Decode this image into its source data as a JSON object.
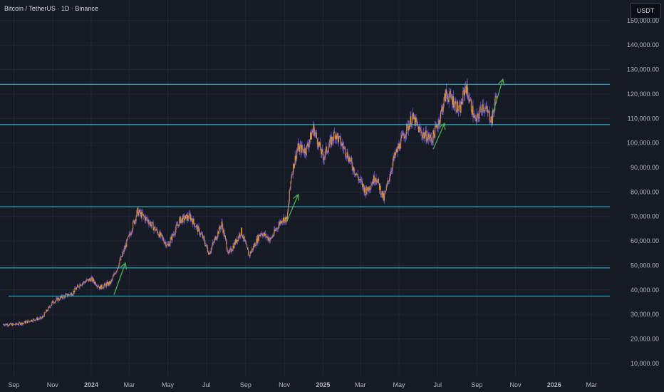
{
  "header": {
    "symbol_title": "Bitcoin / TetherUS · 1D · Binance",
    "currency_label": "USDT"
  },
  "colors": {
    "background": "#161a25",
    "grid": "#232733",
    "axis_text": "#b2b5be",
    "candle": "#e0922c",
    "wick": "#6f5bd0",
    "level_line": "#26c6da",
    "arrow": "#4caf50"
  },
  "chart_data": {
    "type": "line",
    "title": "Bitcoin / TetherUS · 1D · Binance",
    "xlabel": "",
    "ylabel": "",
    "y_axis_position": "right",
    "grid": true,
    "x_tick_labels": [
      "Sep",
      "Nov",
      "2024",
      "Mar",
      "May",
      "Jul",
      "Sep",
      "Nov",
      "2025",
      "Mar",
      "May",
      "Jul",
      "Sep",
      "Nov",
      "2026",
      "Mar"
    ],
    "x_tick_dates": [
      "2023-09-01",
      "2023-11-01",
      "2024-01-01",
      "2024-03-01",
      "2024-05-01",
      "2024-07-01",
      "2024-09-01",
      "2024-11-01",
      "2025-01-01",
      "2025-03-01",
      "2025-05-01",
      "2025-07-01",
      "2025-09-01",
      "2025-11-01",
      "2026-01-01",
      "2026-03-01"
    ],
    "y_tick_labels": [
      "10,000.00",
      "20,000.00",
      "30,000.00",
      "40,000.00",
      "50,000.00",
      "60,000.00",
      "70,000.00",
      "80,000.00",
      "90,000.00",
      "100,000.00",
      "110,000.00",
      "120,000.00",
      "130,000.00",
      "140,000.00",
      "150,000.00"
    ],
    "y_tick_values": [
      10000,
      20000,
      30000,
      40000,
      50000,
      60000,
      70000,
      80000,
      90000,
      100000,
      110000,
      120000,
      130000,
      140000,
      150000
    ],
    "ylim": [
      5000,
      152000
    ],
    "xlim": [
      "2023-08-10",
      "2026-03-30"
    ],
    "series": [
      {
        "values_x": [
          "2023-08-15",
          "2023-09-01",
          "2023-09-15",
          "2023-10-01",
          "2023-10-15",
          "2023-11-01",
          "2023-11-15",
          "2023-12-01",
          "2023-12-15",
          "2024-01-01",
          "2024-01-15",
          "2024-02-01",
          "2024-02-15",
          "2024-03-01",
          "2024-03-14",
          "2024-04-01",
          "2024-04-15",
          "2024-05-01",
          "2024-05-20",
          "2024-06-05",
          "2024-06-25",
          "2024-07-05",
          "2024-07-25",
          "2024-08-05",
          "2024-08-25",
          "2024-09-06",
          "2024-09-25",
          "2024-10-10",
          "2024-10-28",
          "2024-11-05",
          "2024-11-12",
          "2024-11-22",
          "2024-12-05",
          "2024-12-17",
          "2025-01-01",
          "2025-01-20",
          "2025-02-05",
          "2025-02-25",
          "2025-03-10",
          "2025-03-25",
          "2025-04-07",
          "2025-04-22",
          "2025-05-08",
          "2025-05-22",
          "2025-06-05",
          "2025-06-22",
          "2025-07-03",
          "2025-07-14",
          "2025-07-25",
          "2025-08-05",
          "2025-08-14",
          "2025-08-30",
          "2025-09-10",
          "2025-09-25",
          "2025-10-02"
        ],
        "values": [
          26000,
          25800,
          26500,
          27800,
          28500,
          35000,
          37000,
          38500,
          42500,
          44500,
          41000,
          43000,
          51500,
          62000,
          72000,
          68000,
          63500,
          58000,
          68500,
          70000,
          61500,
          55000,
          67000,
          54500,
          64000,
          54000,
          63500,
          60500,
          69000,
          68500,
          87000,
          98000,
          97000,
          106000,
          94000,
          104000,
          97000,
          86000,
          80000,
          86500,
          77000,
          93000,
          103000,
          110500,
          104000,
          101500,
          109000,
          120000,
          117500,
          113000,
          123500,
          108500,
          115500,
          109500,
          120500
        ]
      }
    ],
    "horizontal_levels": [
      124000,
      107500,
      74000,
      49000,
      37500
    ],
    "annotations": [
      {
        "type": "arrow",
        "from": [
          "2024-02-06",
          38000
        ],
        "to": [
          "2024-02-24",
          51000
        ]
      },
      {
        "type": "arrow",
        "from": [
          "2024-11-05",
          68000
        ],
        "to": [
          "2024-11-23",
          79000
        ]
      },
      {
        "type": "arrow",
        "from": [
          "2025-06-24",
          97500
        ],
        "to": [
          "2025-07-12",
          108000
        ]
      },
      {
        "type": "arrow",
        "from": [
          "2025-09-26",
          112000
        ],
        "to": [
          "2025-10-12",
          126000
        ]
      }
    ]
  }
}
